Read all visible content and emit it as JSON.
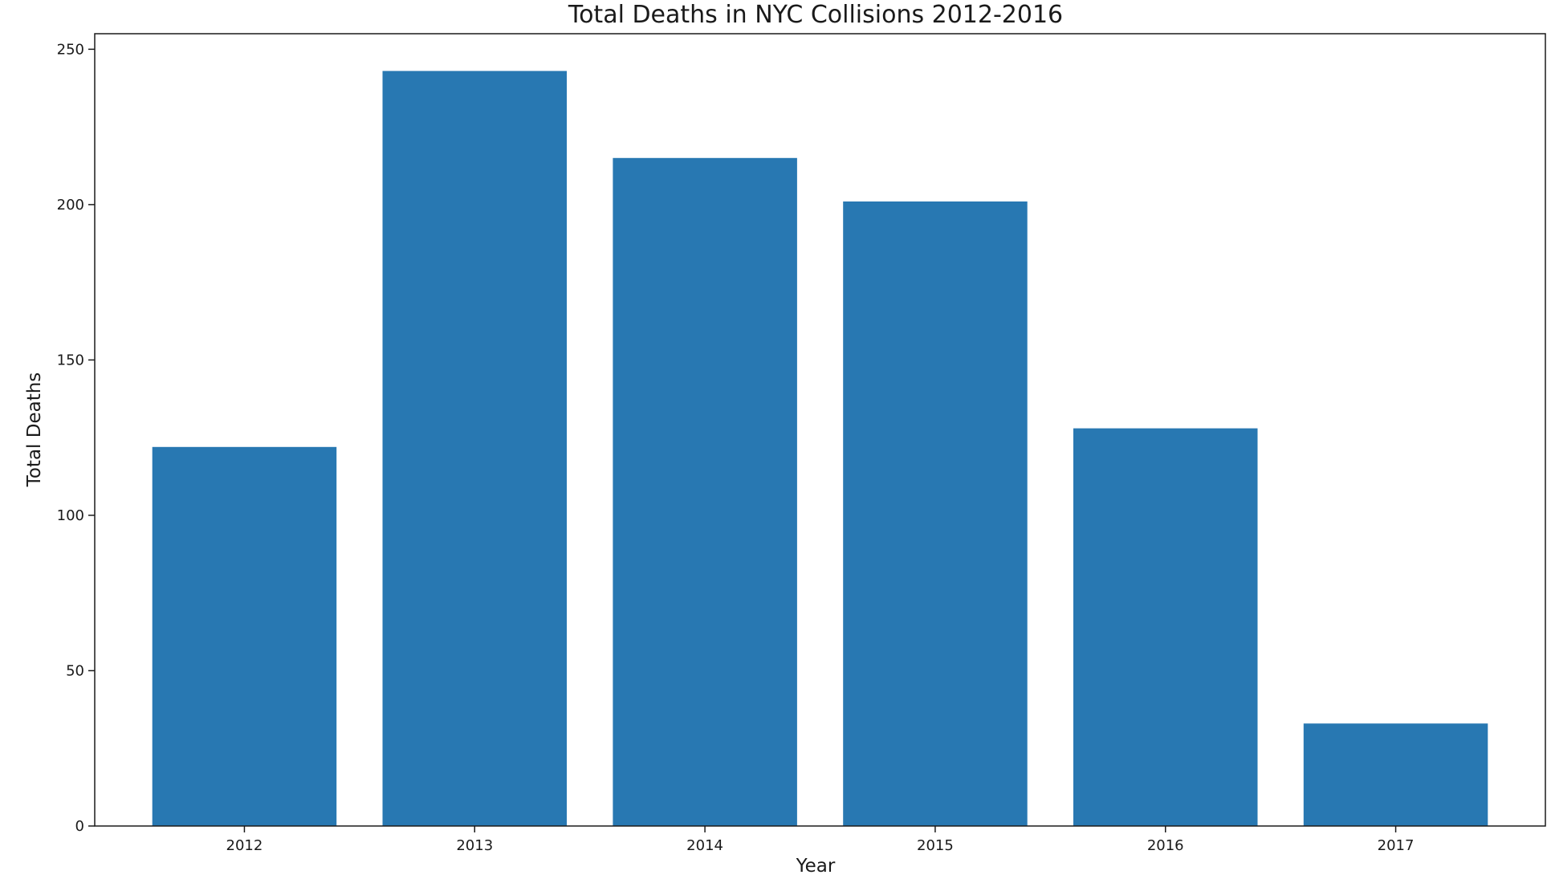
{
  "chart_data": {
    "type": "bar",
    "title": "Total Deaths in NYC Collisions 2012-2016",
    "xlabel": "Year",
    "ylabel": "Total Deaths",
    "categories": [
      "2012",
      "2013",
      "2014",
      "2015",
      "2016",
      "2017"
    ],
    "values": [
      122,
      243,
      215,
      201,
      128,
      33
    ],
    "ylim": [
      0,
      255
    ],
    "yticks": [
      0,
      50,
      100,
      150,
      200,
      250
    ],
    "grid": false,
    "legend": "none",
    "colors": {
      "bar": "#2878b2",
      "axes": "#1a1a1a",
      "text": "#1a1a1a"
    }
  }
}
